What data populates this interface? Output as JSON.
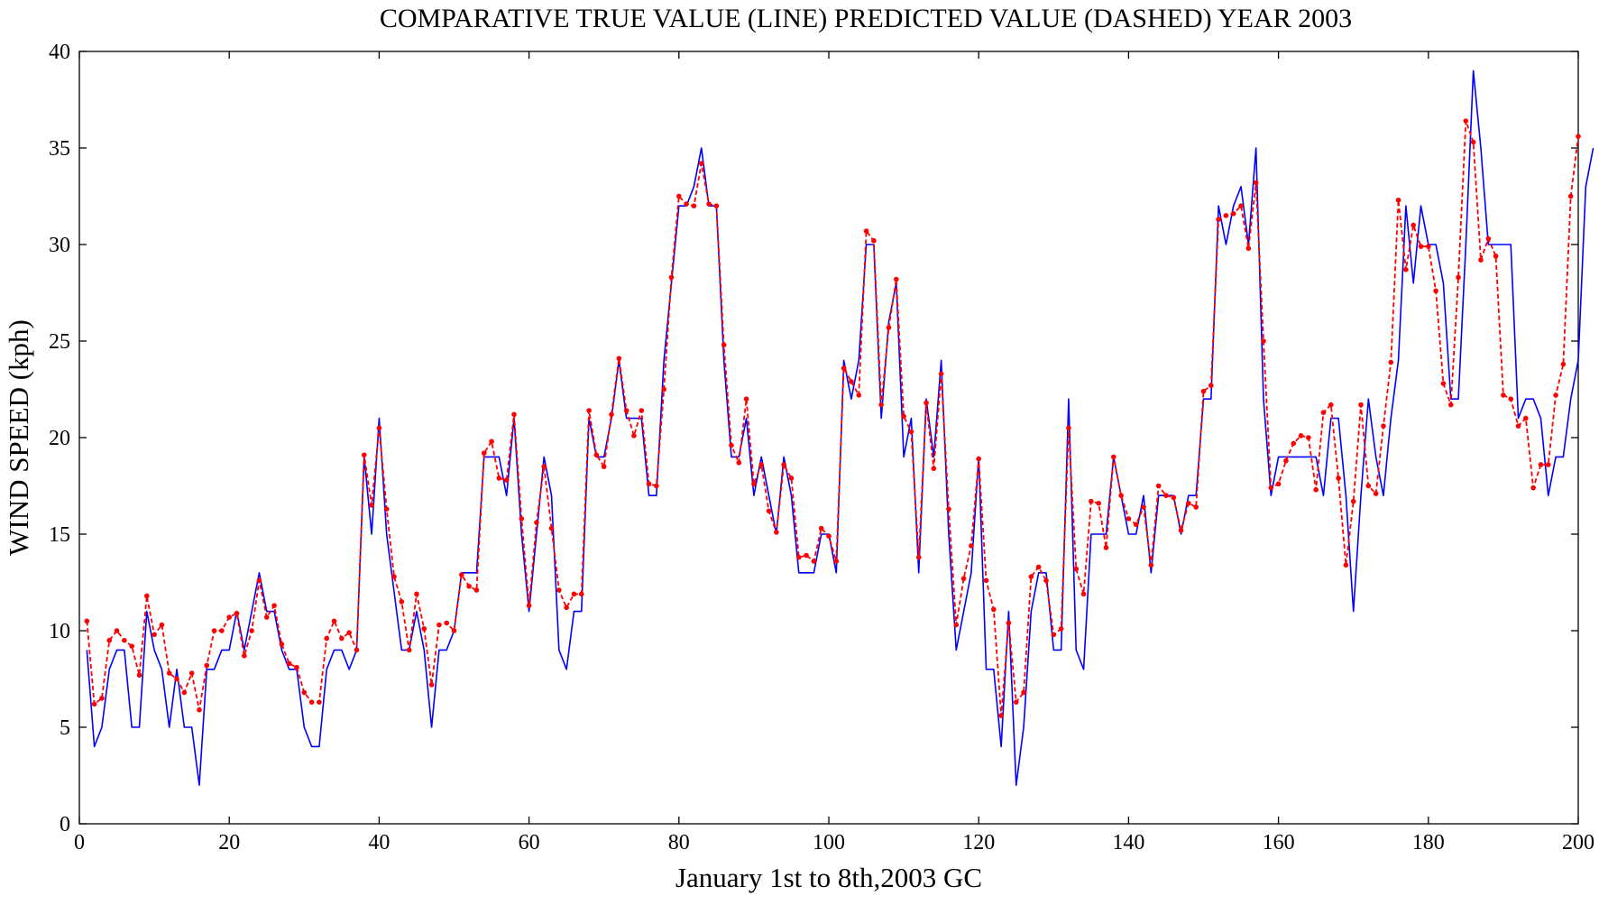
{
  "chart_data": {
    "type": "line",
    "title": "COMPARATIVE TRUE VALUE (LINE) PREDICTED VALUE (DASHED) YEAR 2003",
    "xlabel": "January 1st to 8th,2003 GC",
    "ylabel": "WIND SPEED (kph)",
    "xlim": [
      0,
      200
    ],
    "ylim": [
      0,
      40
    ],
    "x_ticks": [
      0,
      20,
      40,
      60,
      80,
      100,
      120,
      140,
      160,
      180,
      200
    ],
    "y_ticks": [
      0,
      5,
      10,
      15,
      20,
      25,
      30,
      35,
      40
    ],
    "grid": false,
    "legend": "none",
    "series": [
      {
        "style": "solid",
        "color": "#0000ff",
        "x_start": 1,
        "values": [
          9,
          4,
          5,
          8,
          9,
          9,
          5,
          5,
          11,
          9,
          8,
          5,
          8,
          5,
          5,
          2,
          8,
          8,
          9,
          9,
          11,
          9,
          11,
          13,
          11,
          11,
          9,
          8,
          8,
          5,
          4,
          4,
          8,
          9,
          9,
          8,
          9,
          19,
          15,
          21,
          15,
          12,
          9,
          9,
          11,
          9,
          5,
          9,
          9,
          10,
          13,
          13,
          13,
          19,
          19,
          19,
          17,
          21,
          15,
          11,
          15,
          19,
          17,
          9,
          8,
          11,
          11,
          21,
          19,
          19,
          21,
          24,
          21,
          21,
          21,
          17,
          17,
          24,
          28,
          32,
          32,
          33,
          35,
          32,
          32,
          24,
          19,
          19,
          21,
          17,
          19,
          17,
          15,
          19,
          17,
          13,
          13,
          13,
          15,
          15,
          13,
          24,
          22,
          24,
          30,
          30,
          21,
          26,
          28,
          19,
          21,
          13,
          22,
          19,
          24,
          15,
          9,
          11,
          13,
          19,
          8,
          8,
          4,
          11,
          2,
          5,
          11,
          13,
          13,
          9,
          9,
          22,
          9,
          8,
          15,
          15,
          15,
          19,
          17,
          15,
          15,
          17,
          13,
          17,
          17,
          17,
          15,
          17,
          17,
          22,
          22,
          32,
          30,
          32,
          33,
          30,
          35,
          22,
          17,
          19,
          19,
          19,
          19,
          19,
          19,
          17,
          21,
          21,
          17,
          11,
          17,
          22,
          19,
          17,
          21,
          24,
          32,
          28,
          32,
          30,
          30,
          28,
          22,
          22,
          30,
          39,
          35,
          30,
          30,
          30,
          30,
          21,
          22,
          22,
          21,
          17,
          19,
          19,
          22,
          24,
          33,
          35
        ]
      },
      {
        "style": "dashed",
        "color": "#ff0000",
        "x_start": 1,
        "values": [
          10.5,
          6.2,
          6.5,
          9.5,
          10,
          9.5,
          9.2,
          7.7,
          11.8,
          9.8,
          10.3,
          7.8,
          7.5,
          6.8,
          7.8,
          5.9,
          8.2,
          10,
          10,
          10.7,
          10.9,
          8.7,
          10,
          12.6,
          10.7,
          11.3,
          9.3,
          8.3,
          8.1,
          6.8,
          6.3,
          6.3,
          9.6,
          10.5,
          9.6,
          9.9,
          9,
          19.1,
          16.5,
          20.5,
          16.3,
          12.8,
          11.5,
          9,
          11.9,
          10.1,
          7.2,
          10.3,
          10.4,
          10,
          12.9,
          12.3,
          12.1,
          19.2,
          19.8,
          17.9,
          17.8,
          21.2,
          15.8,
          11.3,
          15.6,
          18.5,
          15.3,
          12.1,
          11.2,
          11.9,
          11.9,
          21.4,
          19.1,
          18.5,
          21.2,
          24.1,
          21.4,
          20.1,
          21.4,
          17.6,
          17.5,
          22.5,
          28.3,
          32.5,
          32.1,
          32,
          34.2,
          32.1,
          32,
          24.8,
          19.6,
          18.7,
          22,
          17.6,
          18.6,
          16.2,
          15.1,
          18.6,
          17.9,
          13.8,
          13.9,
          13.6,
          15.3,
          14.9,
          13.6,
          23.6,
          22.9,
          22.2,
          30.7,
          30.2,
          21.7,
          25.7,
          28.2,
          21.1,
          20.3,
          13.8,
          21.8,
          18.4,
          23.3,
          16.3,
          10.3,
          12.7,
          14.4,
          18.9,
          12.6,
          11.1,
          5.6,
          10.4,
          6.3,
          6.8,
          12.8,
          13.3,
          12.6,
          9.8,
          10.1,
          20.5,
          13.2,
          11.9,
          16.7,
          16.6,
          14.3,
          19,
          17,
          15.8,
          15.5,
          16.4,
          13.4,
          17.5,
          17,
          16.9,
          15.2,
          16.6,
          16.4,
          22.4,
          22.7,
          31.3,
          31.5,
          31.6,
          32,
          29.8,
          33.2,
          25,
          17.4,
          17.6,
          18.8,
          19.7,
          20.1,
          20,
          17.3,
          21.3,
          21.7,
          17.9,
          13.4,
          16.7,
          21.7,
          17.5,
          17.1,
          20.6,
          23.9,
          32.3,
          28.7,
          31,
          29.9,
          29.9,
          27.6,
          22.8,
          21.7,
          28.3,
          36.4,
          35.3,
          29.2,
          30.3,
          29.4,
          22.2,
          22,
          20.6,
          21,
          17.4,
          18.6,
          18.6,
          22.2,
          23.8,
          32.5,
          35.6
        ]
      }
    ]
  }
}
